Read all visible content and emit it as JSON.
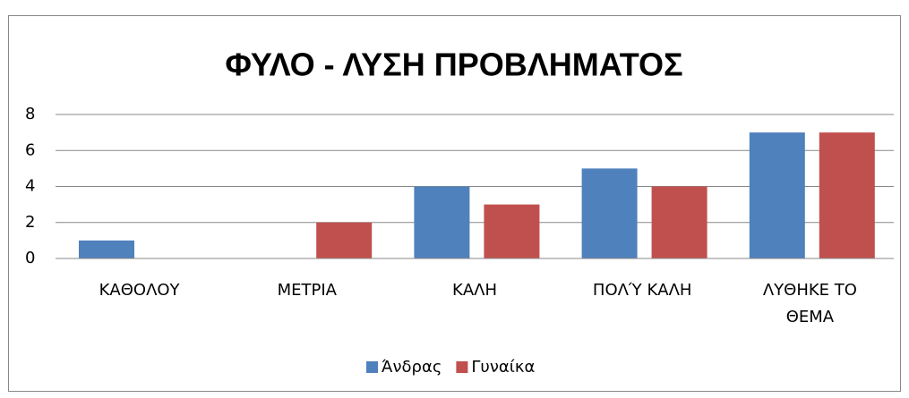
{
  "chart_data": {
    "type": "bar",
    "title": "ΦΥΛΟ - ΛΥΣΗ ΠΡΟΒΛΗΜΑΤΟΣ",
    "categories": [
      "ΚΑΘΟΛΟΥ",
      "ΜΕΤΡΙΑ",
      "ΚΑΛΗ",
      "ΠΟΛΎ ΚΑΛΗ",
      "ΛΥΘΗΚΕ ΤΟ ΘΕΜΑ"
    ],
    "series": [
      {
        "name": "Άνδρας",
        "color": "#4f81bd",
        "values": [
          1,
          0,
          4,
          5,
          7
        ]
      },
      {
        "name": "Γυναίκα",
        "color": "#c0504d",
        "values": [
          0,
          2,
          3,
          4,
          7
        ]
      }
    ],
    "ylim": [
      0,
      8
    ],
    "yticks": [
      0,
      2,
      4,
      6,
      8
    ],
    "grid": true,
    "legend": "bottom"
  }
}
